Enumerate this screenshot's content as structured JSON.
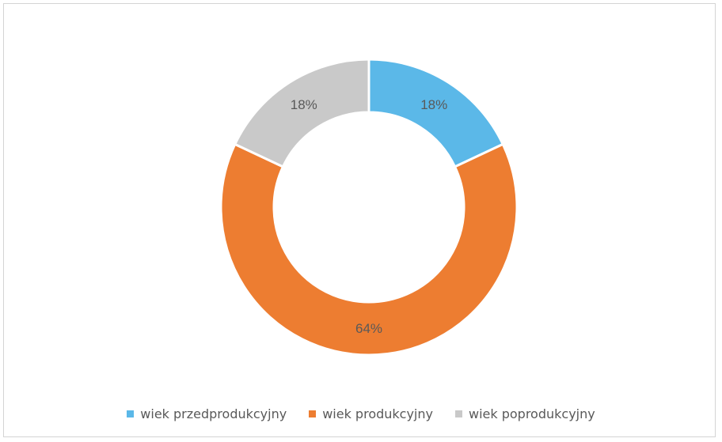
{
  "chart_data": {
    "type": "pie",
    "variant": "donut",
    "categories": [
      "wiek przedprodukcyjny",
      "wiek produkcyjny",
      "wiek poprodukcyjny"
    ],
    "values": [
      18,
      64,
      18
    ],
    "labels": [
      "18%",
      "64%",
      "18%"
    ],
    "colors": [
      "#5bb8e8",
      "#ed7d31",
      "#c9c9c9"
    ],
    "legend_position": "bottom"
  }
}
